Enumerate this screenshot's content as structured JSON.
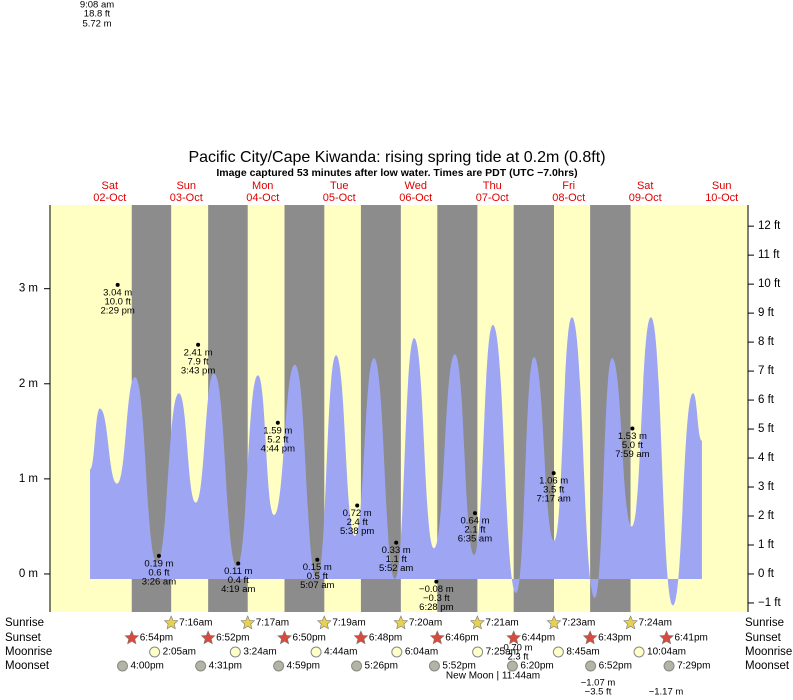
{
  "chart_data": {
    "type": "area",
    "title": "Pacific City/Cape Kiwanda: rising  spring tide at 0.2m (0.8ft)",
    "subtitle": "Image captured 53 minutes after low water. Times are PDT (UTC −7.0hrs)",
    "categories": [
      "Sat",
      "Sun",
      "Mon",
      "Tue",
      "Wed",
      "Thu",
      "Fri",
      "Sat",
      "Sun"
    ],
    "dates": [
      "02-Oct",
      "03-Oct",
      "04-Oct",
      "05-Oct",
      "06-Oct",
      "07-Oct",
      "08-Oct",
      "09-Oct",
      "10-Oct"
    ],
    "x": [
      5.8,
      8.9,
      14.3,
      19.9,
      26.8,
      33.7,
      39.0,
      44.7,
      51.9,
      58.5,
      63.5,
      70.1,
      77.0,
      83.0,
      88.9,
      94.9,
      101.5,
      107.5,
      113.7,
      120.3,
      126.3,
      132.2,
      139.5,
      145.1,
      151.4,
      157.0,
      164.2,
      169.6,
      175.8,
      181.8,
      188.7,
      195.0,
      197.8
    ],
    "values": [
      1.1,
      1.74,
      0.95,
      2.07,
      0.12,
      1.9,
      0.75,
      2.11,
      0.08,
      2.09,
      0.62,
      2.2,
      -0.06,
      2.3,
      0.4,
      2.27,
      -0.05,
      2.48,
      0.27,
      2.31,
      0.2,
      2.62,
      -0.2,
      2.28,
      0.35,
      2.7,
      -0.25,
      2.27,
      0.5,
      2.7,
      -0.33,
      1.9,
      1.4
    ],
    "color": "#9ea6f4",
    "day_color": "#ffffc4",
    "night_color": "#8c8c8c",
    "xlim": [
      -6.75,
      212.25
    ],
    "ylim": [
      -0.4,
      3.88
    ],
    "yticks": [
      {
        "value": 0,
        "label": "0 m"
      },
      {
        "value": 1,
        "label": "1 m"
      },
      {
        "value": 2,
        "label": "2 m"
      },
      {
        "value": 3,
        "label": "3 m"
      }
    ],
    "y2lim": [
      -1.312,
      12.73
    ],
    "y2ticks": [
      {
        "value": -1,
        "label": "−1 ft"
      },
      {
        "value": 0,
        "label": "0 ft"
      },
      {
        "value": 1,
        "label": "1 ft"
      },
      {
        "value": 2,
        "label": "2 ft"
      },
      {
        "value": 3,
        "label": "3 ft"
      },
      {
        "value": 4,
        "label": "4 ft"
      },
      {
        "value": 5,
        "label": "5 ft"
      },
      {
        "value": 6,
        "label": "6 ft"
      },
      {
        "value": 7,
        "label": "7 ft"
      },
      {
        "value": 8,
        "label": "8 ft"
      },
      {
        "value": 9,
        "label": "9 ft"
      },
      {
        "value": 10,
        "label": "10 ft"
      },
      {
        "value": 11,
        "label": "11 ft"
      },
      {
        "value": 12,
        "label": "12 ft"
      }
    ],
    "extremes": [
      {
        "date": "02-Oct",
        "m": 3.04,
        "m_label": "3.04 m",
        "ft_label": "10.0 ft",
        "time": "2:29 pm"
      },
      {
        "date": "03-Oct",
        "m": 0.19,
        "m_label": "0.19 m",
        "ft_label": "0.6 ft",
        "time": "3:26 am"
      },
      {
        "date": "03-Oct",
        "m": 2.41,
        "m_label": "2.41 m",
        "ft_label": "7.9 ft",
        "time": "3:43 pm"
      },
      {
        "date": "04-Oct",
        "m": 0.11,
        "m_label": "0.11 m",
        "ft_label": "0.4 ft",
        "time": "4:19 am"
      },
      {
        "date": "04-Oct",
        "m": 1.59,
        "m_label": "1.59 m",
        "ft_label": "5.2 ft",
        "time": "4:44 pm"
      },
      {
        "date": "05-Oct",
        "m": 0.15,
        "m_label": "0.15 m",
        "ft_label": "0.5 ft",
        "time": "5:07 am"
      },
      {
        "date": "05-Oct",
        "m": 0.72,
        "m_label": "0.72 m",
        "ft_label": "2.4 ft",
        "time": "5:38 pm"
      },
      {
        "date": "06-Oct",
        "m": 0.33,
        "m_label": "0.33 m",
        "ft_label": "1.1 ft",
        "time": "5:52 am"
      },
      {
        "date": "06-Oct",
        "m": -0.08,
        "m_label": "−0.08 m",
        "ft_label": "−0.3 ft",
        "time": "6:28 pm"
      },
      {
        "date": "07-Oct",
        "m": 0.64,
        "m_label": "0.64 m",
        "ft_label": "2.1 ft",
        "time": "6:35 am"
      },
      {
        "date": "08-Oct",
        "m": 1.06,
        "m_label": "1.06 m",
        "ft_label": "3.5 ft",
        "time": "7:17 am"
      },
      {
        "date": "09-Oct",
        "m": 1.53,
        "m_label": "1.53 m",
        "ft_label": "5.0 ft",
        "time": "7:59 am"
      }
    ],
    "rows": [
      {
        "label": "Sunrise",
        "times": [
          null,
          "7:16am",
          "7:17am",
          "7:19am",
          "7:20am",
          "7:21am",
          "7:23am",
          "7:24am",
          null
        ]
      },
      {
        "label": "Sunset",
        "times": [
          "6:54pm",
          "6:52pm",
          "6:50pm",
          "6:48pm",
          "6:46pm",
          "6:44pm",
          "6:43pm",
          "6:41pm",
          null
        ]
      },
      {
        "label": "Moonrise",
        "times": [
          null,
          "2:05am",
          "3:24am",
          "4:44am",
          "6:04am",
          "7:25am",
          "8:45am",
          "10:04am",
          null
        ]
      },
      {
        "label": "Moonset",
        "times": [
          "4:00pm",
          "4:31pm",
          "4:59pm",
          "5:26pm",
          "5:52pm",
          "6:20pm",
          "6:52pm",
          "7:29pm",
          null
        ]
      }
    ],
    "moon_phase": "New Moon | 11:44am",
    "annotations": [
      "9:08 am",
      "18.8 ft",
      "5.72 m",
      "0.70 m",
      "2.3 ft",
      "−1.07 m",
      "−3.5 ft",
      "−1.17 m"
    ]
  }
}
